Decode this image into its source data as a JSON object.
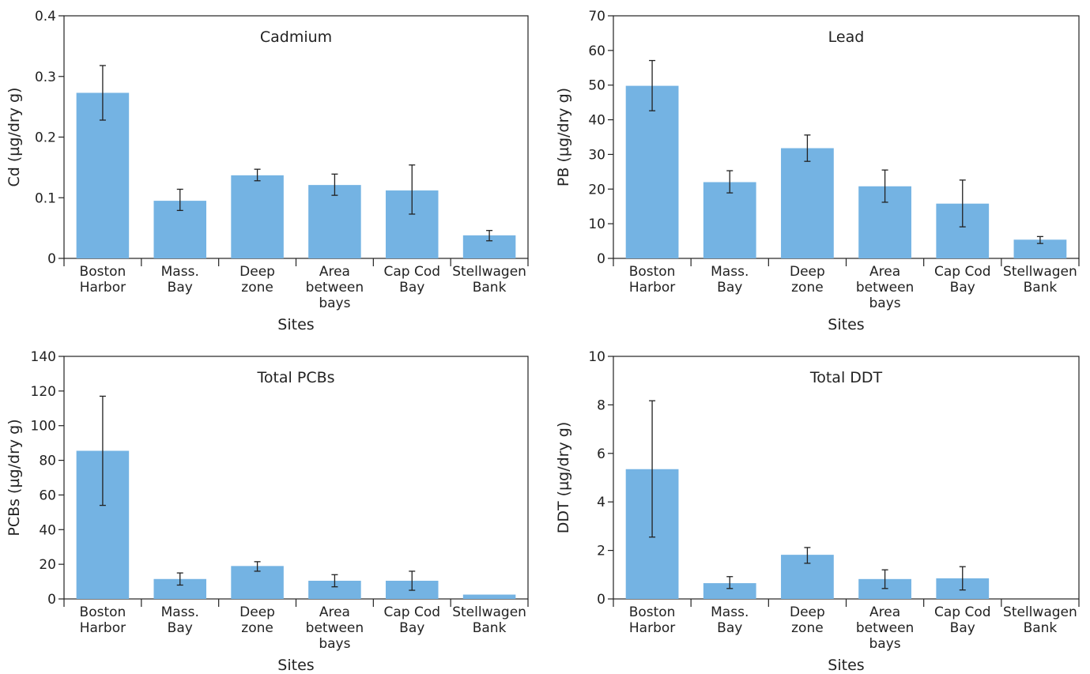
{
  "chart_data": [
    {
      "type": "bar",
      "title": "Cadmium",
      "xlabel": "Sites",
      "ylabel": "Cd (µg/dry g)",
      "categories": [
        [
          "Boston",
          "Harbor"
        ],
        [
          "Mass.",
          "Bay"
        ],
        [
          "Deep",
          "zone"
        ],
        [
          "Area",
          "between",
          "bays"
        ],
        [
          "Cap Cod",
          "Bay"
        ],
        [
          "Stellwagen",
          "Bank"
        ]
      ],
      "values": [
        0.273,
        0.095,
        0.137,
        0.121,
        0.112,
        0.038
      ],
      "error_low": [
        0.228,
        0.079,
        0.128,
        0.104,
        0.073,
        0.029
      ],
      "error_high": [
        0.318,
        0.114,
        0.147,
        0.139,
        0.154,
        0.046
      ],
      "ylim": [
        0,
        0.4
      ],
      "yticks": [
        0,
        0.1,
        0.2,
        0.3,
        0.4
      ],
      "ytick_labels": [
        "0",
        "0.1",
        "0.2",
        "0.3",
        "0.4"
      ],
      "bar_color": "#74b3e3"
    },
    {
      "type": "bar",
      "title": "Lead",
      "xlabel": "Sites",
      "ylabel": "PB (µg/dry g)",
      "categories": [
        [
          "Boston",
          "Harbor"
        ],
        [
          "Mass.",
          "Bay"
        ],
        [
          "Deep",
          "zone"
        ],
        [
          "Area",
          "between",
          "bays"
        ],
        [
          "Cap Cod",
          "Bay"
        ],
        [
          "Stellwagen",
          "Bank"
        ]
      ],
      "values": [
        49.8,
        22.0,
        31.8,
        20.8,
        15.8,
        5.4
      ],
      "error_low": [
        42.6,
        18.9,
        28.0,
        16.2,
        9.1,
        4.3
      ],
      "error_high": [
        57.1,
        25.3,
        35.6,
        25.5,
        22.6,
        6.3
      ],
      "ylim": [
        0,
        70
      ],
      "yticks": [
        0,
        10,
        20,
        30,
        40,
        50,
        60,
        70
      ],
      "ytick_labels": [
        "0",
        "10",
        "20",
        "30",
        "40",
        "50",
        "60",
        "70"
      ],
      "bar_color": "#74b3e3"
    },
    {
      "type": "bar",
      "title": "Total PCBs",
      "xlabel": "Sites",
      "ylabel": "PCBs (µg/dry g)",
      "categories": [
        [
          "Boston",
          "Harbor"
        ],
        [
          "Mass.",
          "Bay"
        ],
        [
          "Deep",
          "zone"
        ],
        [
          "Area",
          "between",
          "bays"
        ],
        [
          "Cap Cod",
          "Bay"
        ],
        [
          "Stellwagen",
          "Bank"
        ]
      ],
      "values": [
        85.5,
        11.5,
        19.0,
        10.5,
        10.5,
        2.5
      ],
      "error_low": [
        54.0,
        8.0,
        16.0,
        7.0,
        5.0,
        2.5
      ],
      "error_high": [
        117.0,
        15.0,
        21.5,
        14.0,
        16.0,
        2.5
      ],
      "ylim": [
        0,
        140
      ],
      "yticks": [
        0,
        20,
        40,
        60,
        80,
        100,
        120,
        140
      ],
      "ytick_labels": [
        "0",
        "20",
        "40",
        "60",
        "80",
        "100",
        "120",
        "140"
      ],
      "bar_color": "#74b3e3"
    },
    {
      "type": "bar",
      "title": "Total DDT",
      "xlabel": "Sites",
      "ylabel": "DDT (µg/dry g)",
      "categories": [
        [
          "Boston",
          "Harbor"
        ],
        [
          "Mass.",
          "Bay"
        ],
        [
          "Deep",
          "zone"
        ],
        [
          "Area",
          "between",
          "bays"
        ],
        [
          "Cap Cod",
          "Bay"
        ],
        [
          "Stellwagen",
          "Bank"
        ]
      ],
      "values": [
        5.35,
        0.65,
        1.82,
        0.82,
        0.85,
        0.0
      ],
      "error_low": [
        2.55,
        0.43,
        1.47,
        0.43,
        0.37,
        0.0
      ],
      "error_high": [
        8.17,
        0.92,
        2.12,
        1.2,
        1.33,
        0.0
      ],
      "ylim": [
        0,
        10
      ],
      "yticks": [
        0,
        2,
        4,
        6,
        8,
        10
      ],
      "ytick_labels": [
        "0",
        "2",
        "4",
        "6",
        "8",
        "10"
      ],
      "bar_color": "#74b3e3"
    }
  ]
}
